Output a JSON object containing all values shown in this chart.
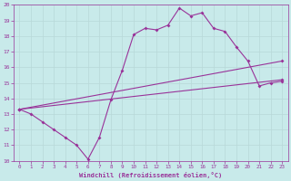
{
  "xlabel": "Windchill (Refroidissement éolien,°C)",
  "bg_color": "#c8eaea",
  "line_color": "#993399",
  "grid_color": "#b8d8d8",
  "xlim": [
    -0.5,
    23.5
  ],
  "ylim": [
    10,
    20
  ],
  "yticks": [
    10,
    11,
    12,
    13,
    14,
    15,
    16,
    17,
    18,
    19,
    20
  ],
  "xticks": [
    0,
    1,
    2,
    3,
    4,
    5,
    6,
    7,
    8,
    9,
    10,
    11,
    12,
    13,
    14,
    15,
    16,
    17,
    18,
    19,
    20,
    21,
    22,
    23
  ],
  "line1_x": [
    0,
    1,
    2,
    3,
    4,
    5,
    6,
    7,
    8,
    9,
    10,
    11,
    12,
    13,
    14,
    15,
    16,
    17,
    18,
    19,
    20,
    21,
    22,
    23
  ],
  "line1_y": [
    13.3,
    13.0,
    12.5,
    12.0,
    11.5,
    11.0,
    10.1,
    11.5,
    13.9,
    15.8,
    18.1,
    18.5,
    18.4,
    18.7,
    19.8,
    19.3,
    19.5,
    18.5,
    18.3,
    17.3,
    16.4,
    14.8,
    15.0,
    15.1
  ],
  "line2_x": [
    0,
    23
  ],
  "line2_y": [
    13.3,
    16.4
  ],
  "line3_x": [
    0,
    23
  ],
  "line3_y": [
    13.3,
    15.2
  ]
}
